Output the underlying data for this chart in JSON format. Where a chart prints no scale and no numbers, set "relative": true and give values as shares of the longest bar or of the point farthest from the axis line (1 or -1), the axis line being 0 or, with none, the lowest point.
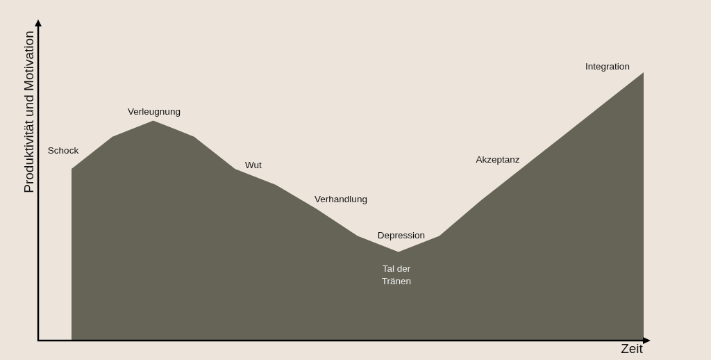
{
  "chart_data": {
    "type": "area",
    "relative": true,
    "xlabel": "Zeit",
    "ylabel": "Produktivität und Motivation",
    "categories": [
      null,
      null,
      null,
      null,
      null,
      null,
      null,
      null,
      null,
      null,
      null,
      null,
      null,
      null,
      null
    ],
    "values": [
      0.64,
      0.76,
      0.82,
      0.76,
      0.64,
      0.58,
      0.49,
      0.39,
      0.33,
      0.39,
      0.52,
      0.64,
      0.76,
      0.88,
      1
    ],
    "color": "#656457",
    "annotations": [
      "Schock",
      "Verleugnung",
      "Wut",
      "Verhandlung",
      "Depression",
      "Tal der Tränen",
      "Akzeptanz",
      "Integration"
    ]
  }
}
